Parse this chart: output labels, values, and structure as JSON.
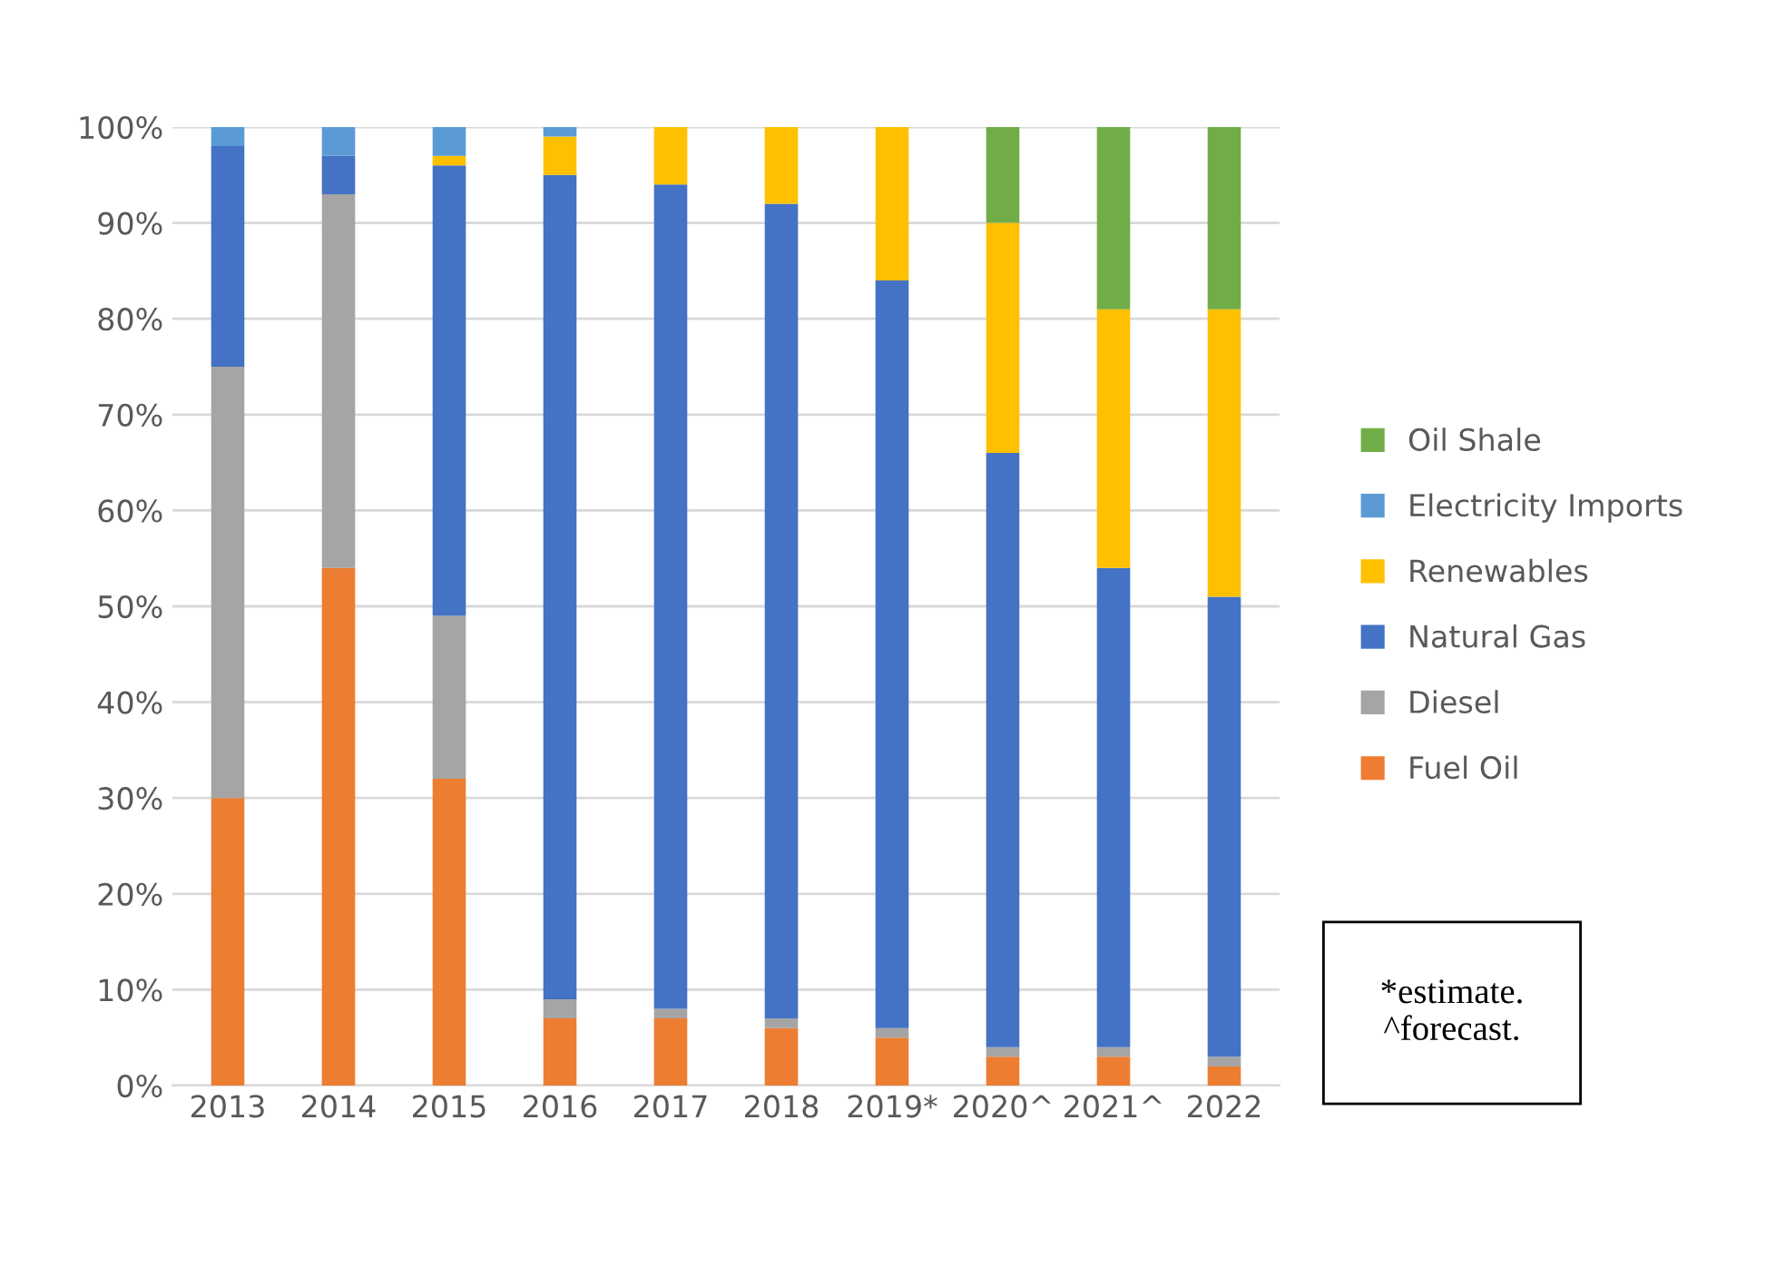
{
  "chart_data": {
    "type": "bar",
    "stacked": true,
    "categories": [
      "2013",
      "2014",
      "2015",
      "2016",
      "2017",
      "2018",
      "2019*",
      "2020^",
      "2021^",
      "2022"
    ],
    "series": [
      {
        "name": "Fuel Oil",
        "color": "#ed7d31",
        "values": [
          30,
          54,
          32,
          7,
          7,
          6,
          5,
          3,
          3,
          2
        ]
      },
      {
        "name": "Diesel",
        "color": "#a5a5a5",
        "values": [
          45,
          39,
          17,
          2,
          1,
          1,
          1,
          1,
          1,
          1
        ]
      },
      {
        "name": "Natural Gas",
        "color": "#4472c4",
        "values": [
          23,
          4,
          47,
          86,
          86,
          85,
          78,
          62,
          50,
          48
        ]
      },
      {
        "name": "Renewables",
        "color": "#ffc000",
        "values": [
          0,
          0,
          1,
          4,
          6,
          8,
          16,
          24,
          27,
          30
        ]
      },
      {
        "name": "Electricity Imports",
        "color": "#5b9bd5",
        "values": [
          2,
          3,
          3,
          1,
          0,
          0,
          0,
          0,
          0,
          0
        ]
      },
      {
        "name": "Oil Shale",
        "color": "#70ad47",
        "values": [
          0,
          0,
          0,
          0,
          0,
          0,
          0,
          10,
          19,
          19
        ]
      }
    ],
    "ylim": [
      0,
      100
    ],
    "yticks": [
      {
        "value": 0,
        "label": "0%"
      },
      {
        "value": 10,
        "label": "10%"
      },
      {
        "value": 20,
        "label": "20%"
      },
      {
        "value": 30,
        "label": "30%"
      },
      {
        "value": 40,
        "label": "40%"
      },
      {
        "value": 50,
        "label": "50%"
      },
      {
        "value": 60,
        "label": "60%"
      },
      {
        "value": 70,
        "label": "70%"
      },
      {
        "value": 80,
        "label": "80%"
      },
      {
        "value": 90,
        "label": "90%"
      },
      {
        "value": 100,
        "label": "100%"
      }
    ],
    "grid": "y",
    "legend": "right",
    "annotations": [
      "*estimate.\n^forecast."
    ]
  }
}
